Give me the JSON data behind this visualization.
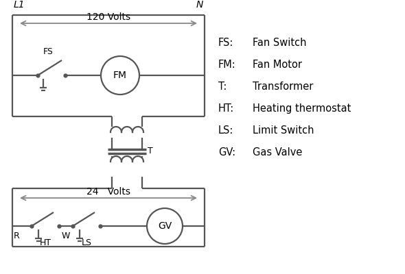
{
  "bg_color": "#ffffff",
  "line_color": "#555555",
  "arrow_color": "#888888",
  "text_color": "#000000",
  "lw": 1.6,
  "legend": {
    "items": [
      [
        "FS:",
        "Fan Switch"
      ],
      [
        "FM:",
        "Fan Motor"
      ],
      [
        "T:",
        "Transformer"
      ],
      [
        "HT:",
        "Heating thermostat"
      ],
      [
        "LS:",
        "Limit Switch"
      ],
      [
        "GV:",
        "Gas Valve"
      ]
    ],
    "fontsize": 10.5
  },
  "L1_label": "L1",
  "N_label": "N",
  "volts120_label": "120 Volts",
  "volts24_label": "24   Volts",
  "T_label": "T",
  "FS_label": "FS",
  "FM_label": "FM",
  "R_label": "R",
  "W_label": "W",
  "HT_label": "HT",
  "LS_label": "LS",
  "GV_label": "GV"
}
